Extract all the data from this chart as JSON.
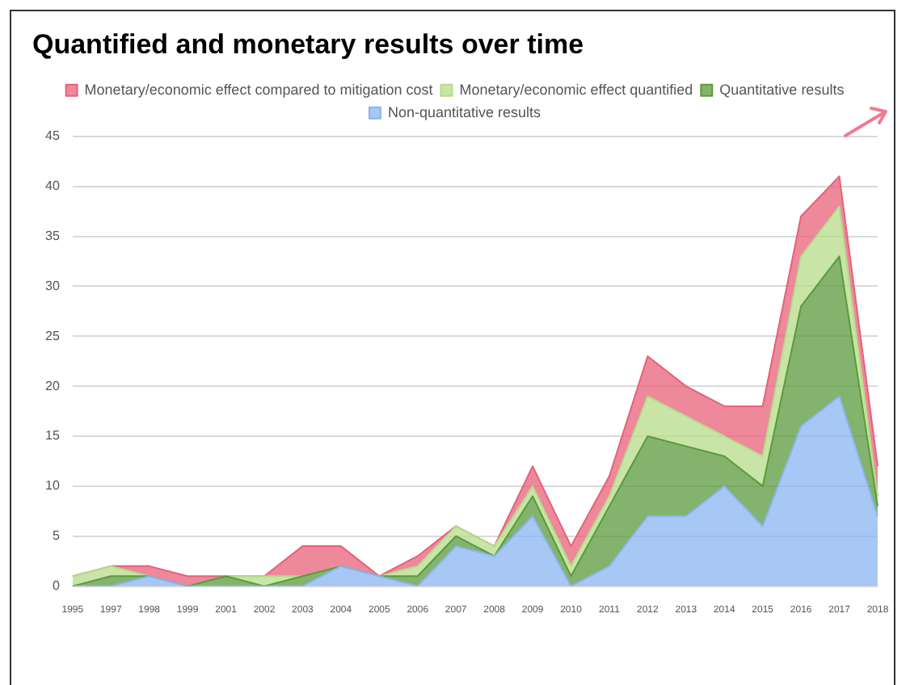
{
  "chart_data": {
    "type": "area",
    "title": "Quantified and monetary results over time",
    "stacked": true,
    "categories": [
      "1995",
      "1997",
      "1998",
      "1999",
      "2001",
      "2002",
      "2003",
      "2004",
      "2005",
      "2006",
      "2007",
      "2008",
      "2009",
      "2010",
      "2011",
      "2012",
      "2013",
      "2014",
      "2015",
      "2016",
      "2017",
      "2018"
    ],
    "series": [
      {
        "name": "Non-quantitative results",
        "color": "#8ab4f0",
        "values": [
          0,
          0,
          1,
          0,
          0,
          0,
          0,
          2,
          1,
          0,
          4,
          3,
          7,
          0,
          2,
          7,
          7,
          10,
          6,
          16,
          19,
          7
        ]
      },
      {
        "name": "Quantitative results",
        "color": "#5a9a3c",
        "values": [
          0,
          1,
          0,
          0,
          1,
          0,
          1,
          0,
          0,
          1,
          1,
          0,
          2,
          1,
          6,
          8,
          7,
          3,
          4,
          12,
          14,
          1
        ]
      },
      {
        "name": "Monetary/economic effect quantified",
        "color": "#b5dc8a",
        "values": [
          1,
          1,
          0,
          0,
          0,
          1,
          0,
          0,
          0,
          1,
          1,
          1,
          1,
          1,
          1,
          4,
          3,
          2,
          3,
          5,
          5,
          1
        ]
      },
      {
        "name": "Monetary/economic effect compared to mitigation cost",
        "color": "#e8607a",
        "values": [
          0,
          0,
          1,
          1,
          0,
          0,
          3,
          2,
          0,
          1,
          0,
          0,
          2,
          2,
          2,
          4,
          3,
          3,
          5,
          4,
          3,
          3
        ]
      }
    ],
    "ylim": [
      0,
      45
    ],
    "yticks": [
      0,
      5,
      10,
      15,
      20,
      25,
      30,
      35,
      40,
      45
    ],
    "grid": "y",
    "legend": "top",
    "marker": "none"
  }
}
